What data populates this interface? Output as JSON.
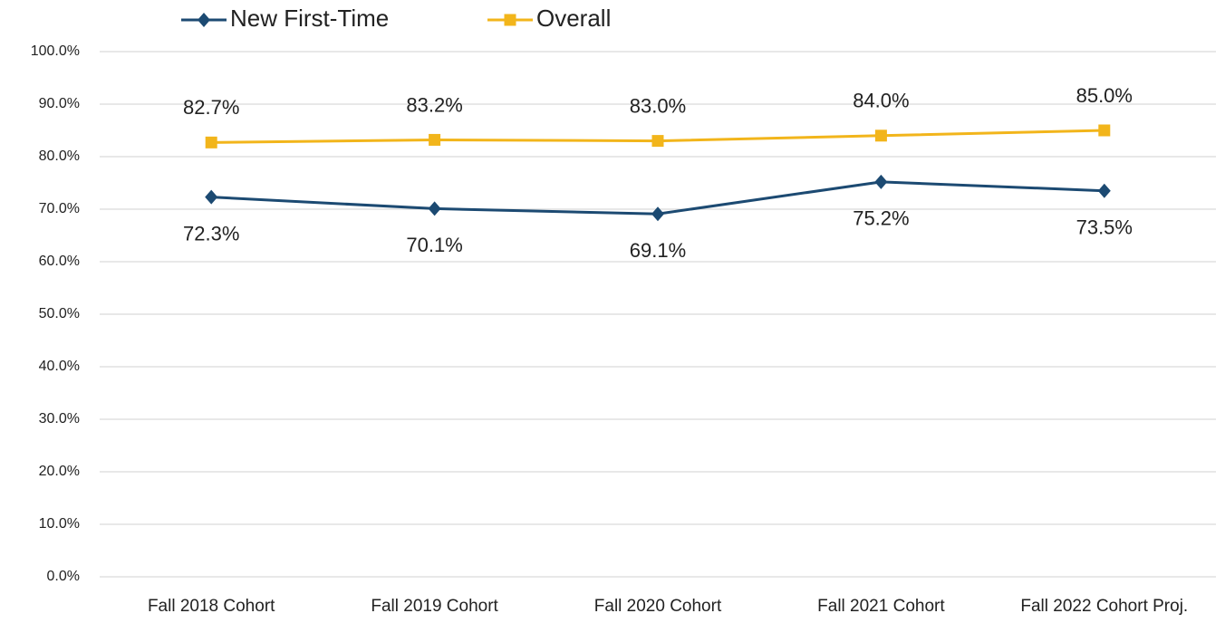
{
  "chart_data": {
    "type": "line",
    "categories": [
      "Fall 2018 Cohort",
      "Fall 2019 Cohort",
      "Fall 2020 Cohort",
      "Fall 2021 Cohort",
      "Fall 2022 Cohort Proj."
    ],
    "series": [
      {
        "name": "New First-Time",
        "color": "#1c4a72",
        "marker": "diamond",
        "values": [
          72.3,
          70.1,
          69.1,
          75.2,
          73.5
        ],
        "value_labels": [
          "72.3%",
          "70.1%",
          "69.1%",
          "75.2%",
          "73.5%"
        ]
      },
      {
        "name": "Overall",
        "color": "#f2b51b",
        "marker": "square",
        "values": [
          82.7,
          83.2,
          83.0,
          84.0,
          85.0
        ],
        "value_labels": [
          "82.7%",
          "83.2%",
          "83.0%",
          "84.0%",
          "85.0%"
        ]
      }
    ],
    "ylim": [
      0,
      100
    ],
    "yticks": [
      {
        "value": 0,
        "label": "0.0%"
      },
      {
        "value": 10,
        "label": "10.0%"
      },
      {
        "value": 20,
        "label": "20.0%"
      },
      {
        "value": 30,
        "label": "30.0%"
      },
      {
        "value": 40,
        "label": "40.0%"
      },
      {
        "value": 50,
        "label": "50.0%"
      },
      {
        "value": 60,
        "label": "60.0%"
      },
      {
        "value": 70,
        "label": "70.0%"
      },
      {
        "value": 80,
        "label": "80.0%"
      },
      {
        "value": 90,
        "label": "90.0%"
      },
      {
        "value": 100,
        "label": "100.0%"
      }
    ],
    "grid": true,
    "legend": "top"
  }
}
